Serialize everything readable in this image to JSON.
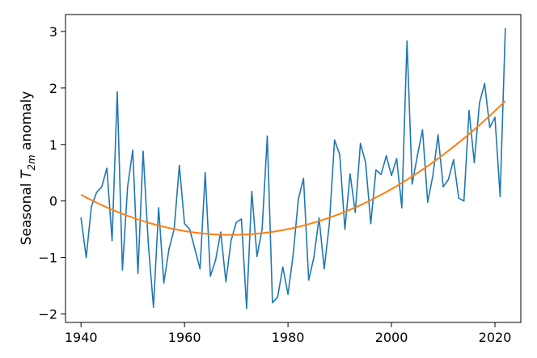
{
  "chart_data": {
    "type": "line",
    "title": "",
    "xlabel": "",
    "ylabel": {
      "prefix": "Seasonal ",
      "variable": "T",
      "subscript": "2m",
      "suffix": " anomaly"
    },
    "xlim": [
      1937,
      2025
    ],
    "ylim": [
      -2.15,
      3.3
    ],
    "x_ticks": [
      1940,
      1960,
      1980,
      2000,
      2020
    ],
    "y_ticks": [
      -2,
      -1,
      0,
      1,
      2,
      3
    ],
    "x_tick_labels": [
      "1940",
      "1960",
      "1980",
      "2000",
      "2020"
    ],
    "y_tick_labels": [
      "−2",
      "−1",
      "0",
      "1",
      "2",
      "3"
    ],
    "grid": false,
    "legend": "none",
    "series": [
      {
        "color": "#1f77b4",
        "x_start": 1940,
        "x_step": 1,
        "values": [
          -0.3,
          -1.0,
          -0.1,
          0.15,
          0.25,
          0.58,
          -0.7,
          1.93,
          -1.22,
          0.25,
          0.9,
          -1.28,
          0.88,
          -0.75,
          -1.88,
          -0.12,
          -1.45,
          -0.85,
          -0.5,
          0.63,
          -0.4,
          -0.5,
          -0.85,
          -1.2,
          0.5,
          -1.33,
          -1.05,
          -0.55,
          -1.43,
          -0.7,
          -0.38,
          -0.32,
          -1.9,
          0.17,
          -0.98,
          -0.5,
          1.15,
          -1.8,
          -1.7,
          -1.17,
          -1.65,
          -0.95,
          0.03,
          0.4,
          -1.4,
          -1.0,
          -0.3,
          -1.2,
          -0.4,
          1.08,
          0.82,
          -0.5,
          0.48,
          -0.2,
          1.02,
          0.68,
          -0.4,
          0.55,
          0.47,
          0.8,
          0.45,
          0.75,
          -0.12,
          2.83,
          0.3,
          0.8,
          1.26,
          -0.02,
          0.45,
          1.17,
          0.25,
          0.38,
          0.73,
          0.05,
          0.0,
          1.6,
          0.68,
          1.73,
          2.08,
          1.3,
          1.48,
          0.08,
          3.05
        ]
      },
      {
        "color": "#ff7f0e",
        "type": "trend",
        "x_start": 1940,
        "x_end": 2022,
        "x_step": 1,
        "quadratic_fit": {
          "vertex_x": 1969,
          "vertex_y": -0.6,
          "end_x": 2022,
          "end_y": 1.77
        }
      }
    ]
  }
}
